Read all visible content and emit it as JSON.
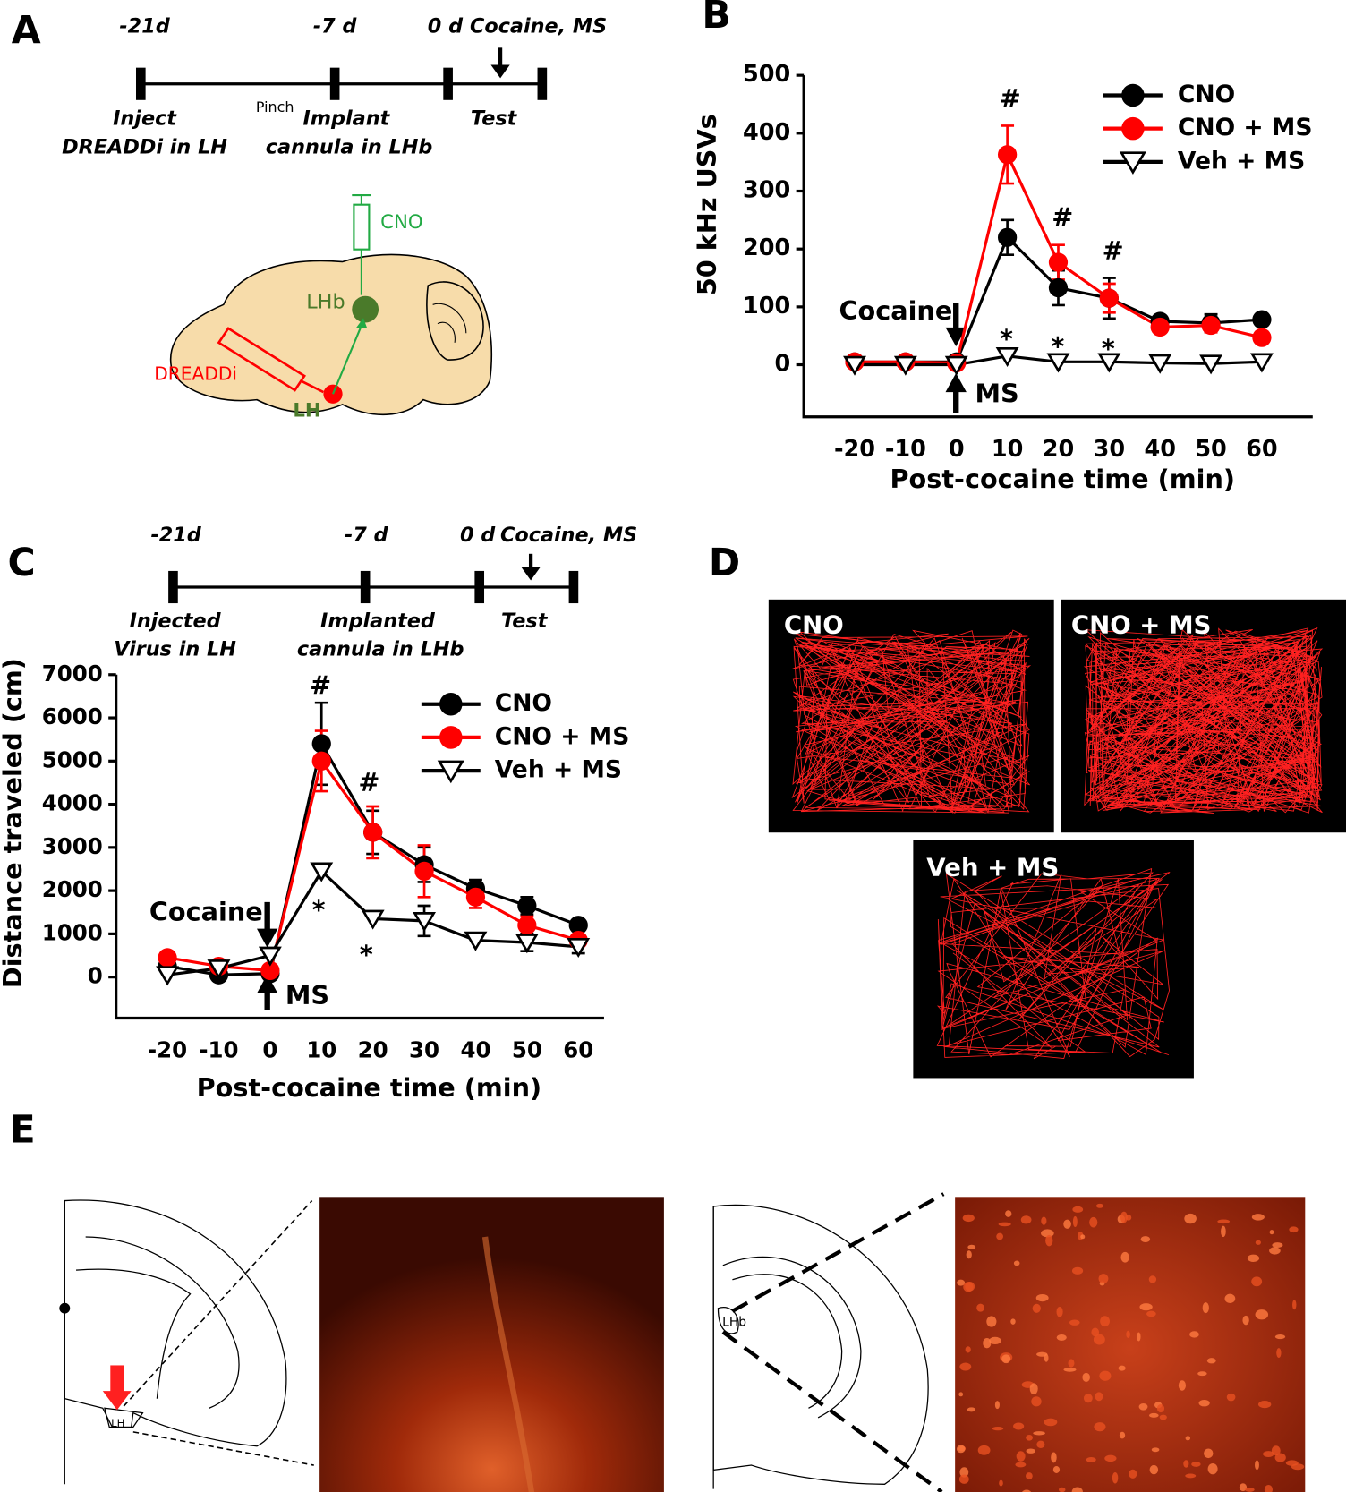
{
  "panel_labels": [
    "A",
    "B",
    "C",
    "D",
    "E"
  ],
  "panel_a": {
    "timeline": [
      "-21d",
      "-7 d",
      "0 d",
      "Cocaine, MS"
    ],
    "events": [
      "Inject",
      "DREADDi in LH",
      "Pinch",
      "Implant",
      "cannula in LHb",
      "Test"
    ],
    "brain_labels": [
      "CNO",
      "LHb",
      "DREADDi",
      "LH"
    ]
  },
  "chart_data": [
    {
      "type": "line",
      "xlabel": "Post-cocaine time (min)",
      "ylabel": "50 kHz USVs",
      "x": [
        -20,
        -10,
        0,
        10,
        20,
        30,
        40,
        50,
        60
      ],
      "xlim": [
        -30,
        70
      ],
      "xticks": [
        -20,
        -10,
        0,
        10,
        20,
        30,
        40,
        50,
        60
      ],
      "ylim": [
        -90,
        500
      ],
      "yticks": [
        0,
        100,
        200,
        300,
        400,
        500
      ],
      "legend": "upper right",
      "series": [
        {
          "name": "CNO",
          "color": "#000000",
          "marker": "circle",
          "values": [
            5,
            5,
            5,
            220,
            133,
            115,
            75,
            72,
            78
          ],
          "errors": [
            null,
            null,
            null,
            30,
            30,
            35,
            8,
            15,
            8
          ]
        },
        {
          "name": "CNO + MS",
          "color": "#ff0000",
          "marker": "circle",
          "values": [
            5,
            5,
            3,
            363,
            177,
            115,
            65,
            68,
            47
          ],
          "errors": [
            null,
            null,
            null,
            50,
            30,
            25,
            8,
            12,
            8
          ]
        },
        {
          "name": "Veh + MS",
          "color": "#000000",
          "marker": "triangle-down",
          "values": [
            0,
            0,
            0,
            15,
            5,
            5,
            3,
            2,
            5
          ],
          "errors": [
            null,
            null,
            null,
            null,
            null,
            null,
            null,
            null,
            null
          ]
        }
      ],
      "annotations": [
        "#",
        "#",
        "#",
        "*",
        "*",
        "*",
        "Cocaine",
        "MS"
      ]
    },
    {
      "type": "line",
      "xlabel": "Post-cocaine time (min)",
      "ylabel": "Distance traveled (cm)",
      "x": [
        -20,
        -10,
        0,
        10,
        20,
        30,
        40,
        50,
        60
      ],
      "xlim": [
        -30,
        65
      ],
      "xticks": [
        -20,
        -10,
        0,
        10,
        20,
        30,
        40,
        50,
        60
      ],
      "ylim": [
        -950,
        7000
      ],
      "yticks": [
        0,
        1000,
        2000,
        3000,
        4000,
        5000,
        6000,
        7000
      ],
      "legend": "upper right",
      "series": [
        {
          "name": "CNO",
          "color": "#000000",
          "marker": "circle",
          "values": [
            250,
            50,
            80,
            5400,
            3350,
            2600,
            2050,
            1650,
            1200
          ],
          "errors": [
            null,
            null,
            null,
            950,
            500,
            400,
            200,
            200,
            100
          ]
        },
        {
          "name": "CNO + MS",
          "color": "#ff0000",
          "marker": "circle",
          "values": [
            450,
            250,
            150,
            5000,
            3350,
            2450,
            1850,
            1200,
            850
          ],
          "errors": [
            null,
            null,
            null,
            700,
            600,
            600,
            250,
            200,
            null
          ]
        },
        {
          "name": "Veh + MS",
          "color": "#000000",
          "marker": "triangle-down",
          "values": [
            50,
            200,
            500,
            2450,
            1350,
            1300,
            850,
            800,
            700
          ],
          "errors": [
            null,
            null,
            null,
            null,
            null,
            350,
            null,
            200,
            150
          ]
        }
      ],
      "annotations": [
        "#",
        "#",
        "*",
        "*",
        "Cocaine",
        "MS"
      ]
    }
  ],
  "panel_c": {
    "timeline": [
      "-21d",
      "-7 d",
      "0 d",
      "Cocaine, MS"
    ],
    "events": [
      "Injected",
      "Virus in LH",
      "Implanted",
      "cannula in LHb",
      "Test"
    ]
  },
  "panel_d": {
    "labels": [
      "CNO",
      "CNO + MS",
      "Veh + MS"
    ]
  },
  "panel_e": {
    "labels": [
      "LH",
      "LHb"
    ]
  }
}
